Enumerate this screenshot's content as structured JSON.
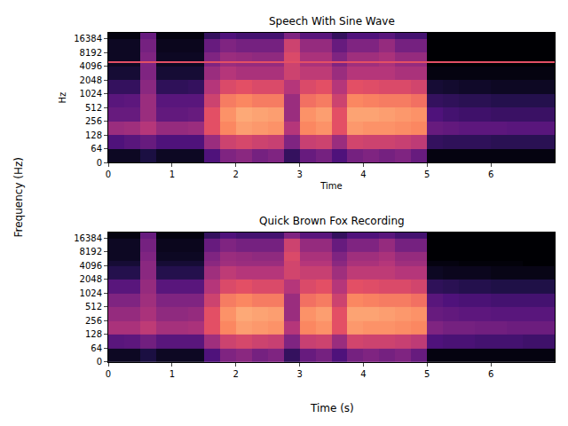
{
  "figure": {
    "xlabel": "Time (s)",
    "ylabel": "Frequency (Hz)"
  },
  "chart_data": [
    {
      "type": "heatmap",
      "title": "Speech With Sine Wave",
      "x_label": "Time",
      "y_label": "Hz",
      "color": "magma",
      "log": "y",
      "xlim": [
        0,
        7
      ],
      "xticks": [
        0,
        1,
        2,
        3,
        4,
        5,
        6
      ],
      "ylim": [
        0,
        22050
      ],
      "yticks": [
        0,
        64,
        128,
        256,
        512,
        1024,
        2048,
        4096,
        8192,
        16384
      ],
      "color_range": [
        -80,
        0
      ],
      "time_bins": [
        0,
        0.25,
        0.5,
        0.75,
        1,
        1.25,
        1.5,
        1.75,
        2,
        2.25,
        2.5,
        2.75,
        3,
        3.25,
        3.5,
        3.75,
        4,
        4.25,
        4.5,
        4.75,
        5,
        5.25,
        5.5,
        5.75,
        6,
        6.25,
        6.5,
        6.75,
        7
      ],
      "freq_bins": [
        0,
        64,
        128,
        256,
        512,
        1024,
        2048,
        4096,
        4800,
        5200,
        8192,
        16384,
        22050
      ],
      "cells": [
        [
          -75,
          -75,
          -70,
          -75,
          -75,
          -75,
          -60,
          -50,
          -48,
          -52,
          -50,
          -65,
          -55,
          -52,
          -60,
          -52,
          -50,
          -52,
          -50,
          -55,
          -78,
          -78,
          -78,
          -78,
          -78,
          -78,
          -78,
          -78
        ],
        [
          -60,
          -58,
          -55,
          -60,
          -60,
          -60,
          -45,
          -35,
          -33,
          -35,
          -36,
          -50,
          -36,
          -35,
          -45,
          -34,
          -35,
          -35,
          -36,
          -38,
          -65,
          -66,
          -66,
          -66,
          -67,
          -67,
          -67,
          -67
        ],
        [
          -45,
          -44,
          -40,
          -46,
          -46,
          -45,
          -30,
          -20,
          -16,
          -17,
          -18,
          -40,
          -20,
          -18,
          -30,
          -17,
          -18,
          -18,
          -19,
          -20,
          -55,
          -56,
          -57,
          -57,
          -57,
          -58,
          -58,
          -58
        ],
        [
          -55,
          -55,
          -45,
          -56,
          -56,
          -55,
          -30,
          -18,
          -14,
          -15,
          -16,
          -45,
          -18,
          -16,
          -30,
          -15,
          -15,
          -16,
          -17,
          -18,
          -60,
          -62,
          -63,
          -63,
          -64,
          -64,
          -64,
          -64
        ],
        [
          -58,
          -57,
          -45,
          -58,
          -58,
          -58,
          -35,
          -22,
          -20,
          -22,
          -22,
          -45,
          -24,
          -22,
          -35,
          -20,
          -21,
          -22,
          -22,
          -24,
          -65,
          -66,
          -67,
          -67,
          -68,
          -68,
          -68,
          -68
        ],
        [
          -65,
          -65,
          -48,
          -66,
          -66,
          -65,
          -40,
          -32,
          -30,
          -32,
          -32,
          -40,
          -32,
          -30,
          -40,
          -30,
          -31,
          -32,
          -32,
          -34,
          -72,
          -73,
          -74,
          -74,
          -75,
          -75,
          -75,
          -75
        ],
        [
          -72,
          -72,
          -50,
          -72,
          -72,
          -72,
          -45,
          -40,
          -42,
          -42,
          -42,
          -35,
          -38,
          -38,
          -45,
          -40,
          -40,
          -40,
          -42,
          -42,
          -78,
          -78,
          -78,
          -78,
          -78,
          -78,
          -78,
          -78
        ],
        [
          -75,
          -75,
          -50,
          -75,
          -75,
          -75,
          -50,
          -45,
          -46,
          -46,
          -46,
          -35,
          -42,
          -42,
          -50,
          -44,
          -44,
          -42,
          -46,
          -46,
          -80,
          -80,
          -80,
          -80,
          -80,
          -80,
          -80,
          -80
        ],
        [
          -30,
          -30,
          -30,
          -30,
          -30,
          -30,
          -30,
          -30,
          -30,
          -30,
          -30,
          -30,
          -30,
          -30,
          -30,
          -30,
          -30,
          -30,
          -30,
          -30,
          -30,
          -30,
          -30,
          -30,
          -30,
          -30,
          -30,
          -30
        ],
        [
          -75,
          -75,
          -50,
          -75,
          -75,
          -75,
          -50,
          -45,
          -46,
          -47,
          -47,
          -32,
          -42,
          -42,
          -50,
          -44,
          -44,
          -42,
          -46,
          -46,
          -80,
          -80,
          -80,
          -80,
          -80,
          -80,
          -80,
          -80
        ],
        [
          -75,
          -75,
          -52,
          -76,
          -76,
          -76,
          -55,
          -50,
          -52,
          -52,
          -52,
          -35,
          -46,
          -46,
          -55,
          -50,
          -50,
          -46,
          -52,
          -52,
          -80,
          -80,
          -80,
          -80,
          -80,
          -80,
          -80,
          -80
        ],
        [
          -78,
          -78,
          -55,
          -78,
          -78,
          -78,
          -65,
          -60,
          -62,
          -62,
          -62,
          -50,
          -58,
          -58,
          -65,
          -60,
          -60,
          -58,
          -62,
          -62,
          -80,
          -80,
          -80,
          -80,
          -80,
          -80,
          -80,
          -80
        ]
      ]
    },
    {
      "type": "heatmap",
      "title": "Quick Brown Fox Recording",
      "color": "magma",
      "log": "y",
      "xlim": [
        0,
        7
      ],
      "xticks": [
        0,
        1,
        2,
        3,
        4,
        5,
        6
      ],
      "ylim": [
        0,
        22050
      ],
      "yticks": [
        0,
        64,
        128,
        256,
        512,
        1024,
        2048,
        4096,
        8192,
        16384
      ],
      "color_range": [
        -80,
        0
      ],
      "time_bins": [
        0,
        0.25,
        0.5,
        0.75,
        1,
        1.25,
        1.5,
        1.75,
        2,
        2.25,
        2.5,
        2.75,
        3,
        3.25,
        3.5,
        3.75,
        4,
        4.25,
        4.5,
        4.75,
        5,
        5.25,
        5.5,
        5.75,
        6,
        6.25,
        6.5,
        6.75,
        7
      ],
      "freq_bins": [
        0,
        64,
        128,
        256,
        512,
        1024,
        2048,
        4096,
        4800,
        5200,
        8192,
        16384,
        22050
      ],
      "cells": [
        [
          -75,
          -75,
          -70,
          -75,
          -75,
          -75,
          -60,
          -50,
          -48,
          -52,
          -50,
          -65,
          -55,
          -52,
          -60,
          -52,
          -50,
          -52,
          -50,
          -55,
          -78,
          -78,
          -78,
          -78,
          -78,
          -78,
          -78,
          -78
        ],
        [
          -58,
          -57,
          -53,
          -58,
          -58,
          -58,
          -44,
          -35,
          -33,
          -35,
          -36,
          -50,
          -36,
          -35,
          -45,
          -34,
          -35,
          -35,
          -36,
          -38,
          -60,
          -61,
          -61,
          -62,
          -62,
          -62,
          -63,
          -63
        ],
        [
          -42,
          -42,
          -38,
          -43,
          -43,
          -42,
          -30,
          -20,
          -16,
          -17,
          -18,
          -40,
          -20,
          -18,
          -30,
          -17,
          -18,
          -18,
          -19,
          -20,
          -50,
          -52,
          -52,
          -53,
          -53,
          -54,
          -54,
          -54
        ],
        [
          -46,
          -46,
          -42,
          -47,
          -47,
          -46,
          -30,
          -18,
          -14,
          -15,
          -16,
          -45,
          -18,
          -16,
          -30,
          -15,
          -15,
          -16,
          -17,
          -18,
          -55,
          -56,
          -57,
          -57,
          -58,
          -58,
          -58,
          -58
        ],
        [
          -50,
          -50,
          -44,
          -50,
          -50,
          -50,
          -35,
          -22,
          -20,
          -22,
          -22,
          -45,
          -24,
          -22,
          -35,
          -20,
          -21,
          -22,
          -22,
          -24,
          -58,
          -60,
          -61,
          -61,
          -62,
          -62,
          -62,
          -62
        ],
        [
          -58,
          -58,
          -46,
          -58,
          -58,
          -58,
          -40,
          -32,
          -30,
          -32,
          -32,
          -40,
          -32,
          -30,
          -40,
          -30,
          -31,
          -32,
          -32,
          -34,
          -66,
          -67,
          -68,
          -68,
          -69,
          -69,
          -69,
          -69
        ],
        [
          -68,
          -68,
          -48,
          -68,
          -68,
          -68,
          -44,
          -38,
          -40,
          -40,
          -40,
          -34,
          -36,
          -36,
          -44,
          -38,
          -38,
          -38,
          -40,
          -40,
          -75,
          -76,
          -76,
          -76,
          -77,
          -77,
          -77,
          -77
        ],
        [
          -72,
          -72,
          -48,
          -72,
          -72,
          -72,
          -48,
          -44,
          -45,
          -45,
          -45,
          -34,
          -40,
          -40,
          -48,
          -42,
          -42,
          -40,
          -44,
          -44,
          -78,
          -78,
          -79,
          -79,
          -79,
          -79,
          -80,
          -80
        ],
        [
          -72,
          -72,
          -48,
          -72,
          -72,
          -72,
          -48,
          -44,
          -45,
          -45,
          -45,
          -34,
          -40,
          -40,
          -48,
          -42,
          -42,
          -40,
          -44,
          -44,
          -78,
          -78,
          -79,
          -79,
          -79,
          -79,
          -80,
          -80
        ],
        [
          -75,
          -75,
          -50,
          -75,
          -75,
          -75,
          -50,
          -45,
          -46,
          -47,
          -47,
          -32,
          -42,
          -42,
          -50,
          -44,
          -44,
          -42,
          -46,
          -46,
          -80,
          -80,
          -80,
          -80,
          -80,
          -80,
          -80,
          -80
        ],
        [
          -75,
          -75,
          -52,
          -76,
          -76,
          -76,
          -55,
          -50,
          -52,
          -52,
          -52,
          -35,
          -46,
          -46,
          -55,
          -50,
          -50,
          -46,
          -52,
          -52,
          -80,
          -80,
          -80,
          -80,
          -80,
          -80,
          -80,
          -80
        ],
        [
          -78,
          -78,
          -55,
          -78,
          -78,
          -78,
          -65,
          -60,
          -62,
          -62,
          -62,
          -50,
          -58,
          -58,
          -65,
          -60,
          -60,
          -58,
          -62,
          -62,
          -80,
          -80,
          -80,
          -80,
          -80,
          -80,
          -80,
          -80
        ]
      ]
    }
  ]
}
